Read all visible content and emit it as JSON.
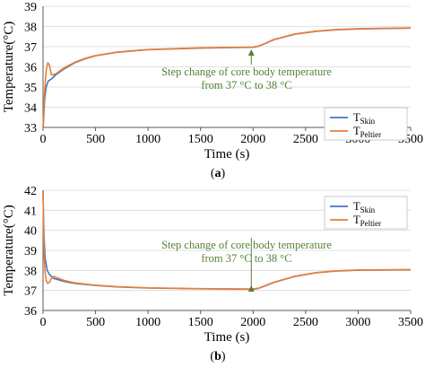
{
  "chart_data": [
    {
      "type": "line",
      "panel_label": "(a)",
      "xlabel": "Time (s)",
      "ylabel": "Temperature(°C)",
      "xlim": [
        0,
        3500
      ],
      "ylim": [
        33,
        39
      ],
      "x_ticks": [
        0,
        500,
        1000,
        1500,
        2000,
        2500,
        3000,
        3500
      ],
      "y_ticks": [
        33,
        34,
        35,
        36,
        37,
        38,
        39
      ],
      "grid": "horizontal",
      "legend_position": "bottom-right",
      "annotation": {
        "line1": "Step change of core body temperature",
        "line2": "from 37 °C to 38 °C",
        "color": "#548235",
        "arrow_to_x": 2000
      },
      "series": [
        {
          "name": "T",
          "name_sub": "Skin",
          "color": "#4472C4",
          "x": [
            0,
            5,
            15,
            30,
            50,
            80,
            120,
            200,
            300,
            400,
            500,
            700,
            1000,
            1500,
            2000,
            2050,
            2100,
            2200,
            2400,
            2600,
            2800,
            3000,
            3500
          ],
          "y": [
            33.0,
            33.3,
            34.4,
            35.0,
            35.3,
            35.4,
            35.6,
            35.9,
            36.2,
            36.4,
            36.55,
            36.72,
            36.85,
            36.93,
            36.97,
            37.02,
            37.12,
            37.35,
            37.62,
            37.76,
            37.84,
            37.88,
            37.92
          ]
        },
        {
          "name": "T",
          "name_sub": "Peltier",
          "color": "#ED7D31",
          "x": [
            0,
            5,
            15,
            30,
            45,
            60,
            80,
            120,
            200,
            300,
            400,
            500,
            700,
            1000,
            1500,
            2000,
            2050,
            2100,
            2200,
            2400,
            2600,
            2800,
            3000,
            3500
          ],
          "y": [
            33.0,
            33.5,
            34.8,
            35.8,
            36.2,
            36.1,
            35.6,
            35.65,
            35.95,
            36.22,
            36.42,
            36.56,
            36.73,
            36.86,
            36.94,
            36.98,
            37.03,
            37.13,
            37.36,
            37.63,
            37.77,
            37.85,
            37.89,
            37.93
          ]
        }
      ]
    },
    {
      "type": "line",
      "panel_label": "(b)",
      "xlabel": "Time (s)",
      "ylabel": "Temperature(°C)",
      "xlim": [
        0,
        3500
      ],
      "ylim": [
        36,
        42
      ],
      "x_ticks": [
        0,
        500,
        1000,
        1500,
        2000,
        2500,
        3000,
        3500
      ],
      "y_ticks": [
        36,
        37,
        38,
        39,
        40,
        41,
        42
      ],
      "grid": "horizontal",
      "legend_position": "top-right",
      "annotation": {
        "line1": "Step change of core body temperature",
        "line2": "from 37 °C to 38 °C",
        "color": "#548235",
        "arrow_to_x": 2000
      },
      "series": [
        {
          "name": "T",
          "name_sub": "Skin",
          "color": "#4472C4",
          "x": [
            0,
            5,
            10,
            20,
            40,
            60,
            100,
            200,
            300,
            500,
            700,
            1000,
            1500,
            2000,
            2050,
            2100,
            2200,
            2400,
            2600,
            2800,
            3000,
            3500
          ],
          "y": [
            42.0,
            40.5,
            39.6,
            38.6,
            38.0,
            37.8,
            37.6,
            37.45,
            37.35,
            37.25,
            37.18,
            37.12,
            37.08,
            37.06,
            37.1,
            37.2,
            37.4,
            37.7,
            37.88,
            37.97,
            38.01,
            38.03
          ]
        },
        {
          "name": "T",
          "name_sub": "Peltier",
          "color": "#ED7D31",
          "x": [
            0,
            5,
            10,
            20,
            30,
            45,
            60,
            80,
            100,
            150,
            200,
            300,
            500,
            700,
            1000,
            1500,
            2000,
            2050,
            2100,
            2200,
            2400,
            2600,
            2800,
            3000,
            3500
          ],
          "y": [
            42.0,
            40.0,
            38.8,
            37.9,
            37.5,
            37.35,
            37.4,
            37.6,
            37.7,
            37.6,
            37.5,
            37.38,
            37.26,
            37.19,
            37.13,
            37.09,
            37.07,
            37.11,
            37.21,
            37.41,
            37.71,
            37.89,
            37.98,
            38.02,
            38.04
          ]
        }
      ]
    }
  ]
}
